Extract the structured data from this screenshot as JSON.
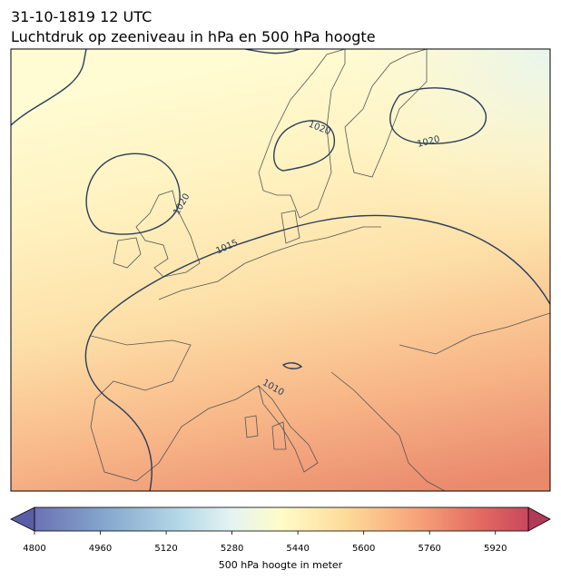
{
  "title": {
    "line1": "31-10-1819 12 UTC",
    "line2": "Luchtdruk op zeeniveau in hPa en 500 hPa hoogte"
  },
  "map": {
    "contour_labels": [
      1020,
      1020,
      1020,
      1015,
      1010
    ]
  },
  "colorbar": {
    "lim": [
      4800,
      6000
    ],
    "ticks": [
      4800,
      4960,
      5120,
      5280,
      5440,
      5600,
      5760,
      5920
    ],
    "label": "500 hPa hoogte in meter"
  }
}
